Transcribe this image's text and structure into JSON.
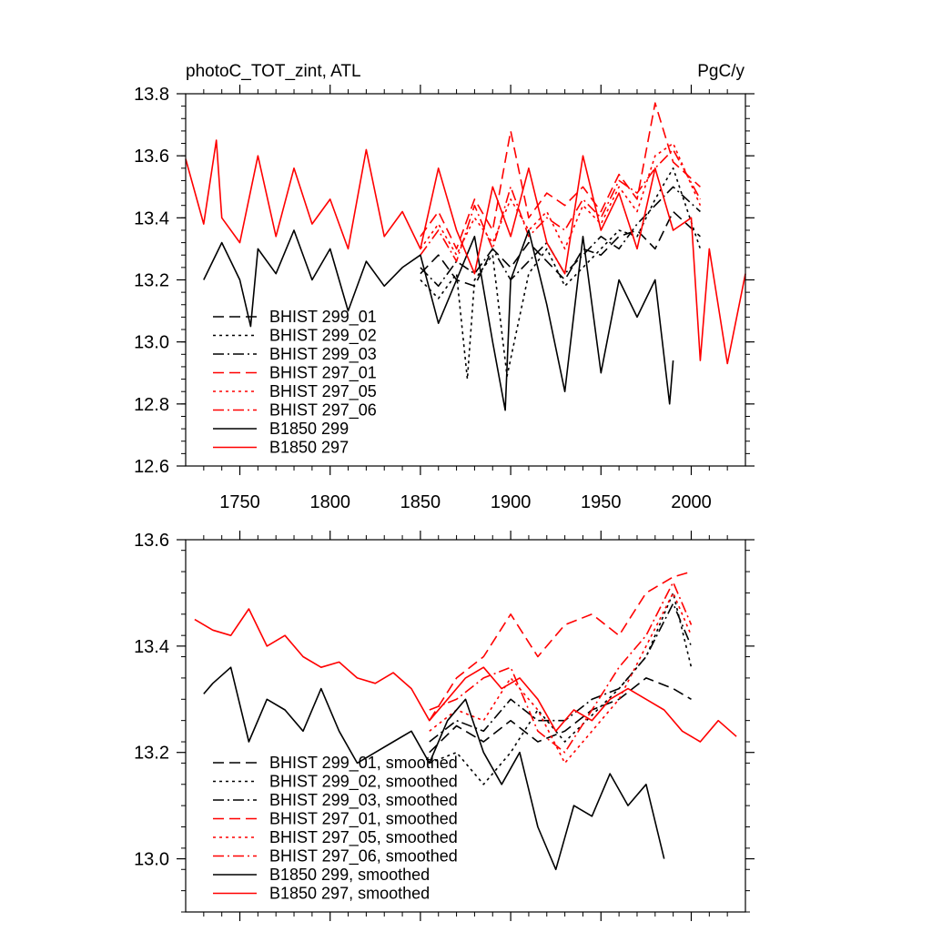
{
  "chart_data": [
    {
      "type": "line",
      "title": "photoC_TOT_zint, ATL",
      "units": "PgC/y",
      "xlim": [
        1720,
        2030
      ],
      "ylim": [
        12.6,
        13.8
      ],
      "xticks": [
        1750,
        1800,
        1850,
        1900,
        1950,
        2000
      ],
      "yticks": [
        12.6,
        12.8,
        13.0,
        13.2,
        13.4,
        13.6,
        13.8
      ],
      "ytick_labels": [
        "12.6",
        "12.8",
        "13.0",
        "13.2",
        "13.4",
        "13.6",
        "13.8"
      ],
      "grid": false,
      "legend_position": "lower-left",
      "series": [
        {
          "name": "BHIST 299_01",
          "color": "#000000",
          "dash": "dash",
          "x": [
            1850,
            1860,
            1870,
            1880,
            1890,
            1900,
            1910,
            1920,
            1930,
            1940,
            1950,
            1960,
            1970,
            1980,
            1990,
            2005
          ],
          "y": [
            13.22,
            13.28,
            13.2,
            13.18,
            13.3,
            13.24,
            13.32,
            13.26,
            13.2,
            13.3,
            13.28,
            13.34,
            13.36,
            13.3,
            13.42,
            13.34
          ]
        },
        {
          "name": "BHIST 299_02",
          "color": "#000000",
          "dash": "dot",
          "x": [
            1850,
            1860,
            1870,
            1876,
            1880,
            1890,
            1898,
            1910,
            1920,
            1930,
            1940,
            1950,
            1960,
            1970,
            1980,
            1990,
            2005
          ],
          "y": [
            13.2,
            13.14,
            13.22,
            12.88,
            13.2,
            13.28,
            12.89,
            13.22,
            13.3,
            13.18,
            13.24,
            13.3,
            13.36,
            13.34,
            13.46,
            13.56,
            13.3
          ]
        },
        {
          "name": "BHIST 299_03",
          "color": "#000000",
          "dash": "dashdot",
          "x": [
            1850,
            1860,
            1870,
            1880,
            1890,
            1900,
            1910,
            1920,
            1930,
            1940,
            1950,
            1960,
            1970,
            1980,
            1990,
            2005
          ],
          "y": [
            13.24,
            13.18,
            13.26,
            13.22,
            13.3,
            13.2,
            13.26,
            13.32,
            13.22,
            13.28,
            13.34,
            13.3,
            13.38,
            13.44,
            13.5,
            13.42
          ]
        },
        {
          "name": "BHIST 297_01",
          "color": "#ff0000",
          "dash": "dash",
          "x": [
            1850,
            1860,
            1870,
            1880,
            1890,
            1900,
            1910,
            1920,
            1930,
            1940,
            1950,
            1960,
            1970,
            1980,
            1990,
            2005
          ],
          "y": [
            13.34,
            13.42,
            13.3,
            13.46,
            13.36,
            13.68,
            13.4,
            13.48,
            13.44,
            13.5,
            13.42,
            13.54,
            13.46,
            13.77,
            13.58,
            13.5
          ]
        },
        {
          "name": "BHIST 297_05",
          "color": "#ff0000",
          "dash": "dot",
          "x": [
            1850,
            1860,
            1870,
            1880,
            1890,
            1900,
            1910,
            1920,
            1930,
            1940,
            1950,
            1960,
            1970,
            1980,
            1990,
            2005
          ],
          "y": [
            13.3,
            13.38,
            13.28,
            13.4,
            13.32,
            13.46,
            13.36,
            13.42,
            13.3,
            13.44,
            13.38,
            13.5,
            13.42,
            13.6,
            13.64,
            13.44
          ]
        },
        {
          "name": "BHIST 297_06",
          "color": "#ff0000",
          "dash": "dashdot",
          "x": [
            1850,
            1860,
            1870,
            1880,
            1890,
            1900,
            1910,
            1920,
            1930,
            1940,
            1950,
            1960,
            1970,
            1980,
            1990,
            2005
          ],
          "y": [
            13.28,
            13.36,
            13.26,
            13.44,
            13.3,
            13.5,
            13.34,
            13.4,
            13.36,
            13.46,
            13.4,
            13.52,
            13.48,
            13.56,
            13.62,
            13.46
          ]
        },
        {
          "name": "B1850 299",
          "color": "#000000",
          "dash": "solid",
          "x": [
            1730,
            1740,
            1750,
            1756,
            1760,
            1770,
            1780,
            1790,
            1800,
            1810,
            1820,
            1830,
            1840,
            1850,
            1860,
            1870,
            1880,
            1890,
            1897,
            1900,
            1910,
            1920,
            1930,
            1940,
            1950,
            1960,
            1970,
            1980,
            1988,
            1990
          ],
          "y": [
            13.2,
            13.32,
            13.2,
            13.05,
            13.3,
            13.22,
            13.36,
            13.2,
            13.3,
            13.1,
            13.26,
            13.18,
            13.24,
            13.28,
            13.06,
            13.2,
            13.34,
            13.0,
            12.78,
            13.2,
            13.36,
            13.12,
            12.84,
            13.34,
            12.9,
            13.2,
            13.08,
            13.2,
            12.8,
            12.94
          ]
        },
        {
          "name": "B1850 297",
          "color": "#ff0000",
          "dash": "solid",
          "x": [
            1720,
            1730,
            1737,
            1740,
            1750,
            1760,
            1770,
            1780,
            1790,
            1800,
            1810,
            1820,
            1830,
            1840,
            1850,
            1860,
            1870,
            1880,
            1890,
            1900,
            1910,
            1920,
            1930,
            1940,
            1950,
            1960,
            1970,
            1980,
            1990,
            2000,
            2005,
            2010,
            2020,
            2030
          ],
          "y": [
            13.59,
            13.38,
            13.65,
            13.4,
            13.32,
            13.6,
            13.34,
            13.56,
            13.38,
            13.46,
            13.3,
            13.62,
            13.34,
            13.42,
            13.3,
            13.56,
            13.36,
            13.22,
            13.5,
            13.34,
            13.56,
            13.32,
            13.22,
            13.6,
            13.36,
            13.48,
            13.3,
            13.56,
            13.36,
            13.4,
            12.94,
            13.3,
            12.93,
            13.22
          ]
        }
      ]
    },
    {
      "type": "line",
      "xlim": [
        1720,
        2030
      ],
      "ylim": [
        12.9,
        13.6
      ],
      "yticks": [
        13.0,
        13.2,
        13.4,
        13.6
      ],
      "ytick_labels": [
        "13.0",
        "13.2",
        "13.4",
        "13.6"
      ],
      "grid": false,
      "legend_position": "lower-left",
      "series": [
        {
          "name": "BHIST 299_01, smoothed",
          "color": "#000000",
          "dash": "dash",
          "x": [
            1855,
            1870,
            1885,
            1900,
            1915,
            1930,
            1945,
            1960,
            1975,
            1990,
            2000
          ],
          "y": [
            13.2,
            13.25,
            13.22,
            13.26,
            13.22,
            13.24,
            13.28,
            13.3,
            13.34,
            13.32,
            13.3
          ]
        },
        {
          "name": "BHIST 299_02, smoothed",
          "color": "#000000",
          "dash": "dot",
          "x": [
            1855,
            1870,
            1885,
            1900,
            1915,
            1930,
            1945,
            1960,
            1975,
            1990,
            2000
          ],
          "y": [
            13.18,
            13.2,
            13.14,
            13.2,
            13.28,
            13.22,
            13.27,
            13.32,
            13.38,
            13.5,
            13.36
          ]
        },
        {
          "name": "BHIST 299_03, smoothed",
          "color": "#000000",
          "dash": "dashdot",
          "x": [
            1855,
            1870,
            1885,
            1900,
            1915,
            1930,
            1945,
            1960,
            1975,
            1990,
            2000
          ],
          "y": [
            13.22,
            13.26,
            13.24,
            13.3,
            13.26,
            13.26,
            13.3,
            13.32,
            13.38,
            13.48,
            13.4
          ]
        },
        {
          "name": "BHIST 297_01, smoothed",
          "color": "#ff0000",
          "dash": "dash",
          "x": [
            1855,
            1870,
            1885,
            1900,
            1915,
            1930,
            1945,
            1960,
            1975,
            1990,
            2000
          ],
          "y": [
            13.26,
            13.34,
            13.38,
            13.46,
            13.38,
            13.44,
            13.46,
            13.42,
            13.5,
            13.53,
            13.54
          ]
        },
        {
          "name": "BHIST 297_05, smoothed",
          "color": "#ff0000",
          "dash": "dot",
          "x": [
            1855,
            1870,
            1885,
            1900,
            1915,
            1930,
            1945,
            1960,
            1975,
            1990,
            2000
          ],
          "y": [
            13.24,
            13.28,
            13.26,
            13.34,
            13.28,
            13.18,
            13.24,
            13.3,
            13.4,
            13.5,
            13.42
          ]
        },
        {
          "name": "BHIST 297_06, smoothed",
          "color": "#ff0000",
          "dash": "dashdot",
          "x": [
            1855,
            1870,
            1885,
            1900,
            1915,
            1930,
            1945,
            1960,
            1975,
            1990,
            2000
          ],
          "y": [
            13.28,
            13.3,
            13.34,
            13.36,
            13.24,
            13.2,
            13.28,
            13.36,
            13.42,
            13.52,
            13.44
          ]
        },
        {
          "name": "B1850 299, smoothed",
          "color": "#000000",
          "dash": "solid",
          "x": [
            1730,
            1735,
            1745,
            1755,
            1765,
            1775,
            1785,
            1795,
            1805,
            1815,
            1825,
            1835,
            1845,
            1855,
            1865,
            1875,
            1885,
            1895,
            1905,
            1915,
            1925,
            1935,
            1945,
            1955,
            1965,
            1975,
            1985
          ],
          "y": [
            13.31,
            13.33,
            13.36,
            13.22,
            13.3,
            13.28,
            13.24,
            13.32,
            13.24,
            13.18,
            13.2,
            13.22,
            13.24,
            13.18,
            13.26,
            13.3,
            13.2,
            13.14,
            13.2,
            13.06,
            12.98,
            13.1,
            13.08,
            13.16,
            13.1,
            13.14,
            13.0
          ]
        },
        {
          "name": "B1850 297, smoothed",
          "color": "#ff0000",
          "dash": "solid",
          "x": [
            1725,
            1735,
            1745,
            1755,
            1765,
            1775,
            1785,
            1795,
            1805,
            1815,
            1825,
            1835,
            1845,
            1855,
            1865,
            1875,
            1885,
            1895,
            1905,
            1915,
            1925,
            1935,
            1945,
            1955,
            1965,
            1975,
            1985,
            1995,
            2005,
            2015,
            2025
          ],
          "y": [
            13.45,
            13.43,
            13.42,
            13.47,
            13.4,
            13.42,
            13.38,
            13.36,
            13.37,
            13.34,
            13.33,
            13.35,
            13.32,
            13.26,
            13.3,
            13.34,
            13.36,
            13.32,
            13.34,
            13.3,
            13.24,
            13.28,
            13.26,
            13.3,
            13.32,
            13.3,
            13.28,
            13.24,
            13.22,
            13.26,
            13.23
          ]
        }
      ]
    }
  ]
}
